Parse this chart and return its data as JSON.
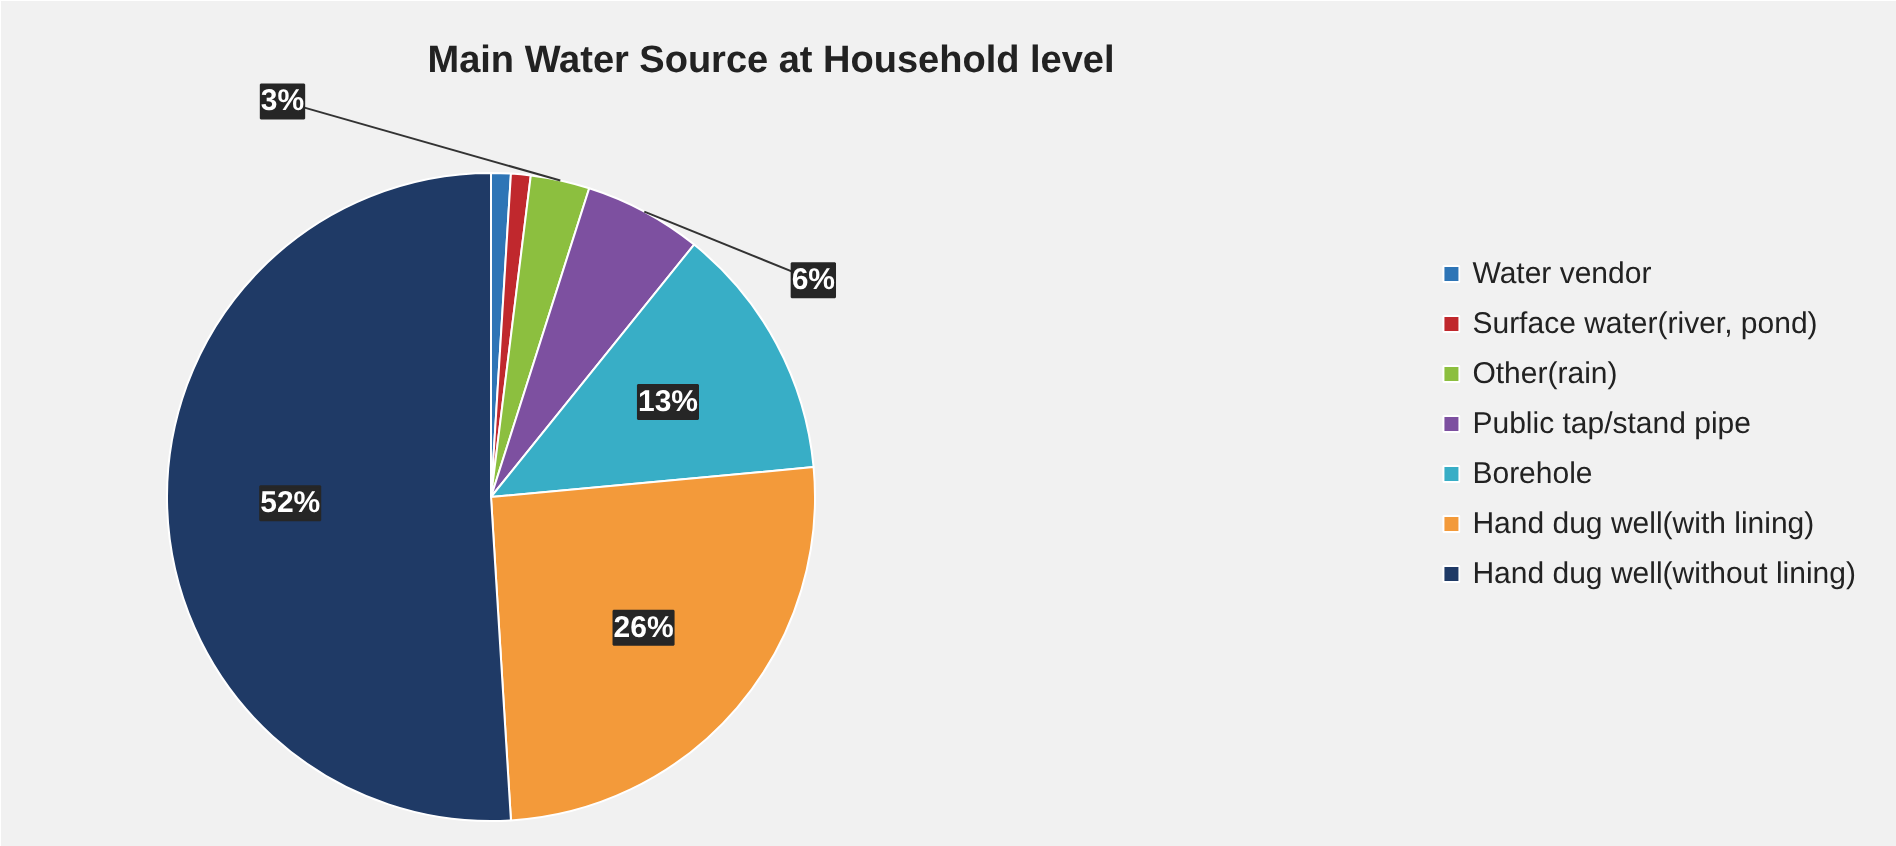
{
  "chart_data": {
    "type": "pie",
    "title": "Main Water Source at Household level",
    "categories": [
      "Water vendor",
      "Surface water(river, pond)",
      "Other(rain)",
      "Public tap/stand pipe",
      "Borehole",
      "Hand dug well(with lining)",
      "Hand dug well(without lining)"
    ],
    "values": [
      1,
      1,
      3,
      6,
      13,
      26,
      52
    ],
    "colors": [
      "#2e75b6",
      "#c0282d",
      "#8cbf3f",
      "#7d50a0",
      "#38aec6",
      "#f39a3a",
      "#1f3a66"
    ],
    "value_labels": [
      null,
      null,
      "3%",
      "6%",
      "13%",
      "26%",
      "52%"
    ],
    "legend": "right"
  }
}
